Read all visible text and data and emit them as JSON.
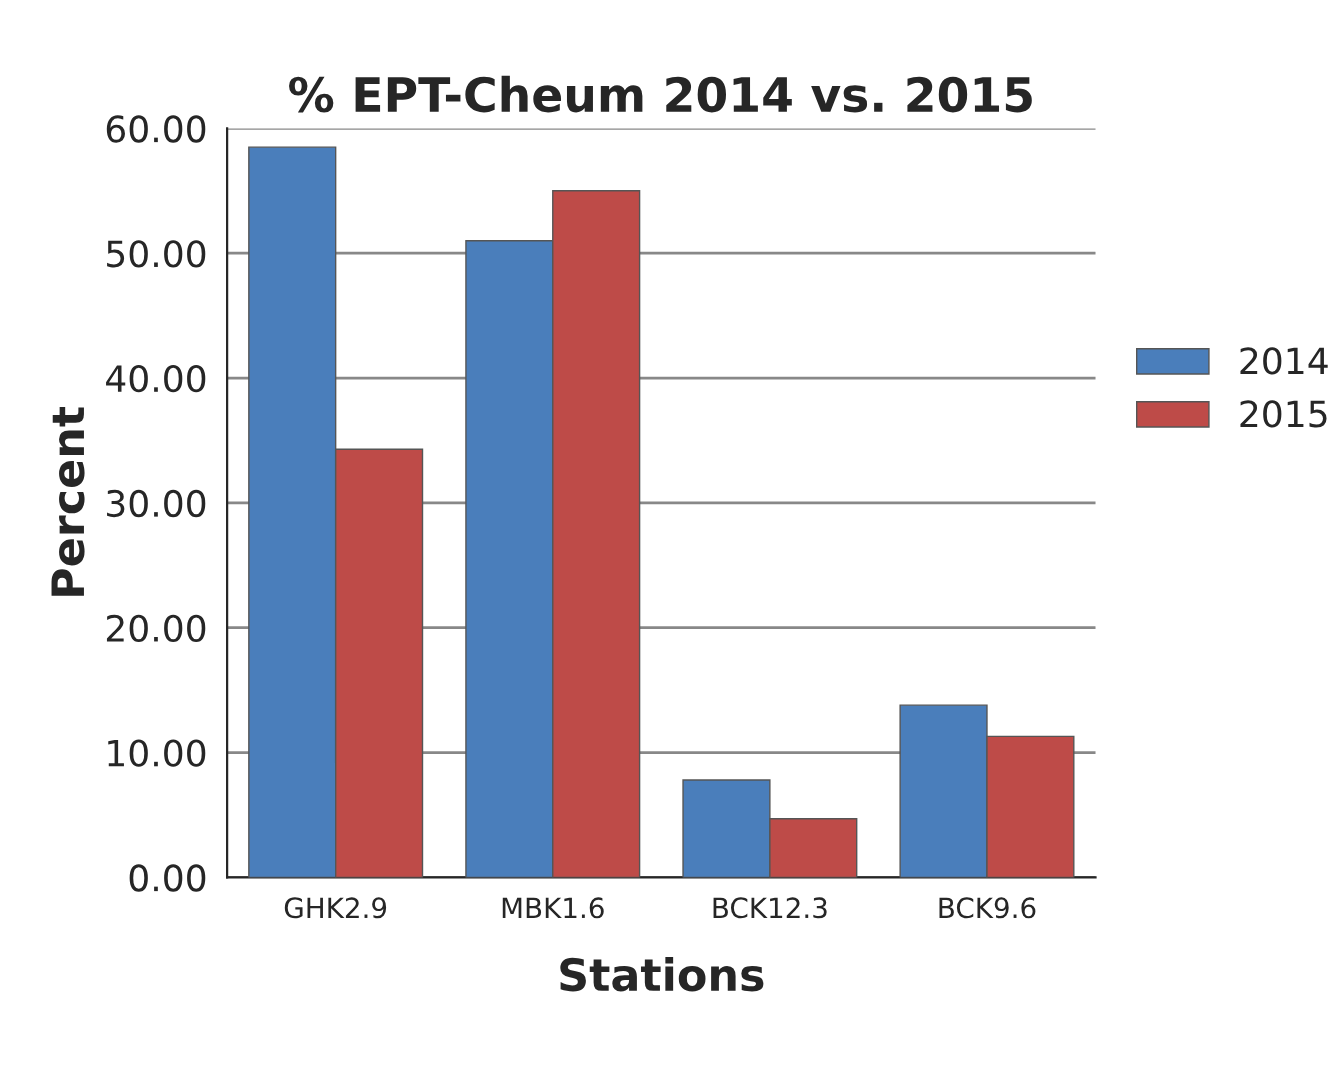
{
  "chart_data": {
    "type": "bar",
    "title": "% EPT-Cheum 2014 vs. 2015",
    "xlabel": "Stations",
    "ylabel": "Percent",
    "categories": [
      "GHK2.9",
      "MBK1.6",
      "BCK12.3",
      "BCK9.6"
    ],
    "series": [
      {
        "name": "2014",
        "color": "#4a7ebb",
        "values": [
          58.5,
          51,
          7.8,
          13.8
        ]
      },
      {
        "name": "2015",
        "color": "#be4b48",
        "values": [
          34.3,
          55,
          4.7,
          11.3
        ]
      }
    ],
    "ylim": [
      0,
      60
    ],
    "yticks": [
      {
        "value": 0,
        "label": "0.00"
      },
      {
        "value": 10,
        "label": "10.00"
      },
      {
        "value": 20,
        "label": "20.00"
      },
      {
        "value": 30,
        "label": "30.00"
      },
      {
        "value": 40,
        "label": "40.00"
      },
      {
        "value": 50,
        "label": "50.00"
      },
      {
        "value": 60,
        "label": "60.00"
      }
    ],
    "grid": "y",
    "legend": "right"
  }
}
